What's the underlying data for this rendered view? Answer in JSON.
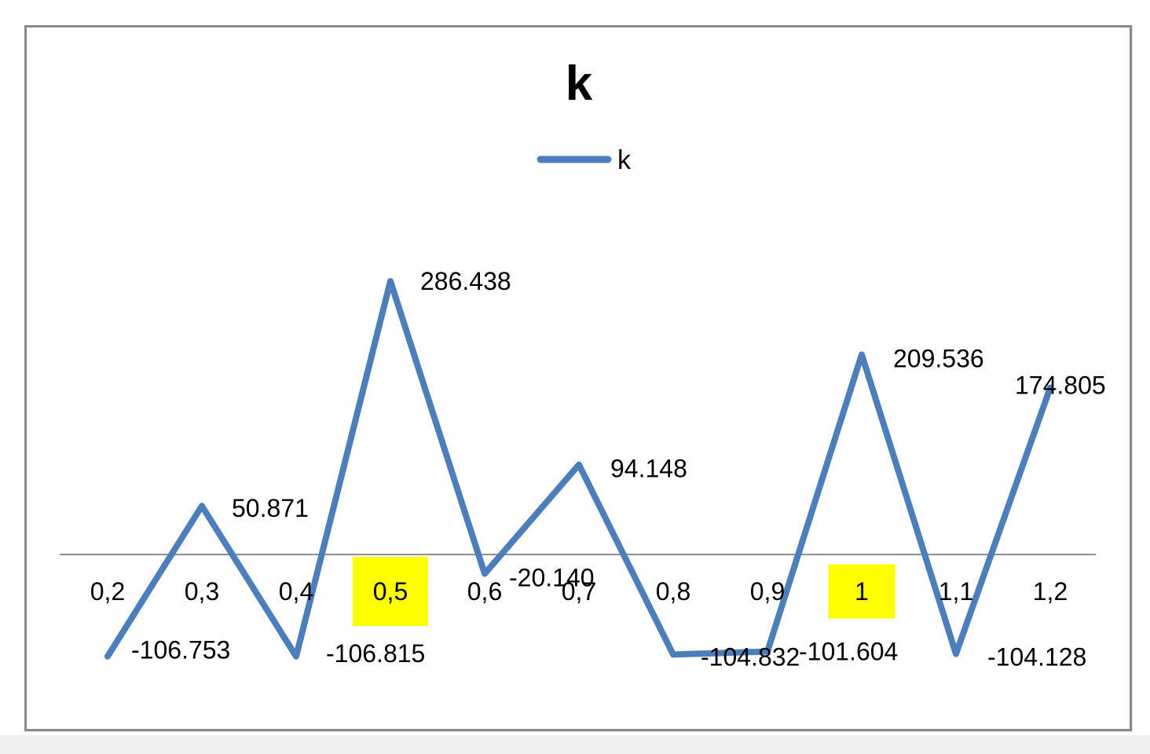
{
  "chart_data": {
    "type": "line",
    "title": "k",
    "legend_position": "top-center",
    "categories": [
      "0,2",
      "0,3",
      "0,4",
      "0,5",
      "0,6",
      "0,7",
      "0,8",
      "0,9",
      "1",
      "1,1",
      "1,2"
    ],
    "series": [
      {
        "name": "k",
        "values": [
          -106.753,
          50.871,
          -106.815,
          286.438,
          -20.14,
          94.148,
          -104.832,
          -101.604,
          209.536,
          -104.128,
          174.805
        ],
        "labels": [
          "-106.753",
          "50.871",
          "-106.815",
          "286.438",
          "-20.140",
          "94.148",
          "-104.832",
          "-101.604",
          "209.536",
          "-104.128",
          "174.805"
        ]
      }
    ],
    "highlighted_categories": [
      "0,5",
      "1"
    ],
    "xlabel": "",
    "ylabel": "",
    "y_axis_visible": false,
    "zero_line": true,
    "grid": false,
    "colors": {
      "line": "#4d7ebc",
      "highlight": "#ffff00",
      "axis_line": "#8e8e8e",
      "frame_border": "#8b8b8b",
      "text": "#000000"
    }
  }
}
